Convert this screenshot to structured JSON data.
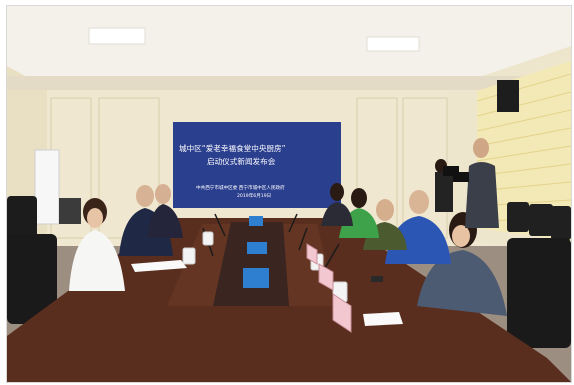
{
  "banner": {
    "title_line1": "城中区“爱老幸福食堂中央厨房”",
    "title_line2": "启动仪式新闻发布会",
    "organizers": "中共西宁市城中区委 西宁市城中区人民政府",
    "date": "2019年6月19日"
  },
  "colors": {
    "banner_bg": "#2b3f8f",
    "banner_text": "#ffffff",
    "wall": "#efe7cf",
    "ceiling": "#f4f1ea",
    "table": "#5a2e1e",
    "name_card": "#f2c7cf"
  }
}
